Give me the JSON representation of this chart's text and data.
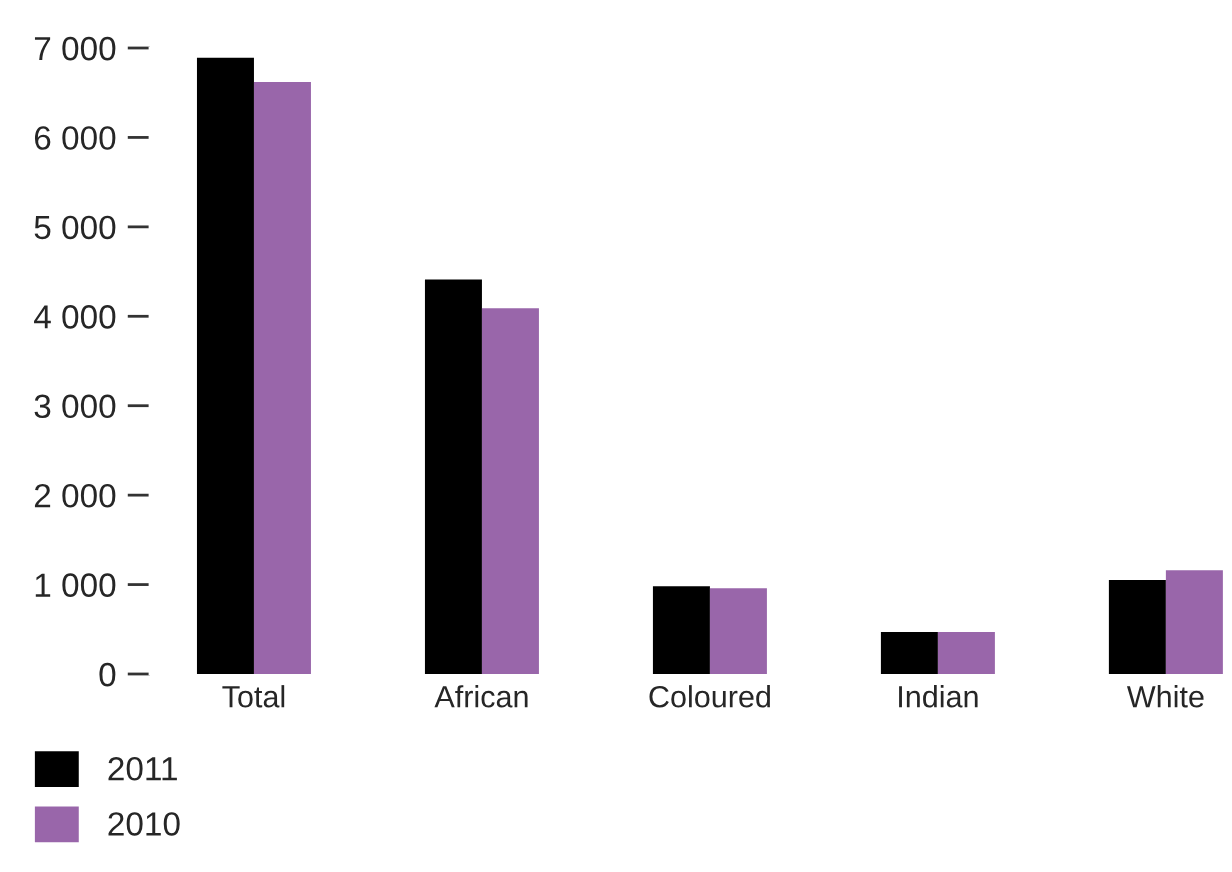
{
  "chart_data": {
    "type": "bar",
    "categories": [
      "Total",
      "African",
      "Coloured",
      "Indian",
      "White"
    ],
    "series": [
      {
        "name": "2011",
        "color": "#000000",
        "values": [
          6890,
          4410,
          980,
          470,
          1050
        ]
      },
      {
        "name": "2010",
        "color": "#9966aa",
        "values": [
          6620,
          4090,
          960,
          470,
          1160
        ]
      }
    ],
    "ylim": [
      0,
      7000
    ],
    "yticks": [
      {
        "value": 0,
        "label": "0"
      },
      {
        "value": 1000,
        "label": "1 000"
      },
      {
        "value": 2000,
        "label": "2 000"
      },
      {
        "value": 3000,
        "label": "3 000"
      },
      {
        "value": 4000,
        "label": "4 000"
      },
      {
        "value": 5000,
        "label": "5 000"
      },
      {
        "value": 6000,
        "label": "6 000"
      },
      {
        "value": 7000,
        "label": "7 000"
      }
    ],
    "grid": false,
    "legend": "bottom left"
  }
}
